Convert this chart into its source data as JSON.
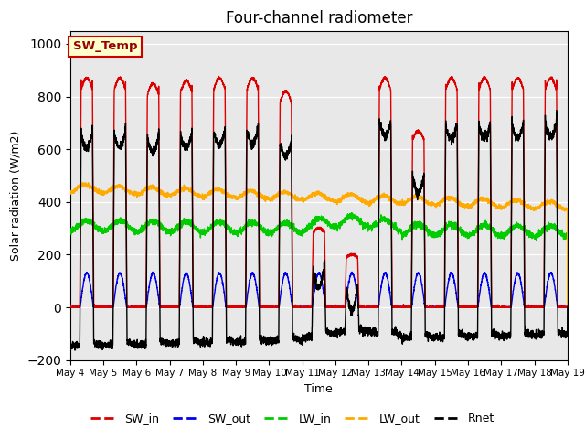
{
  "title": "Four-channel radiometer",
  "xlabel": "Time",
  "ylabel": "Solar radiation (W/m2)",
  "ylim": [
    -200,
    1050
  ],
  "yticks": [
    -200,
    0,
    200,
    400,
    600,
    800,
    1000
  ],
  "bg_color": "#e8e8e8",
  "annotation_text": "SW_Temp",
  "annotation_facecolor": "#ffffcc",
  "annotation_edgecolor": "#cc0000",
  "annotation_textcolor": "#990000",
  "colors": {
    "SW_in": "#dd0000",
    "SW_out": "#0000ee",
    "LW_in": "#00cc00",
    "LW_out": "#ffaa00",
    "Rnet": "#000000"
  },
  "legend_labels": [
    "SW_in",
    "SW_out",
    "LW_in",
    "LW_out",
    "Rnet"
  ],
  "start_day": 4,
  "end_day": 19,
  "num_days": 15,
  "points_per_day": 288
}
